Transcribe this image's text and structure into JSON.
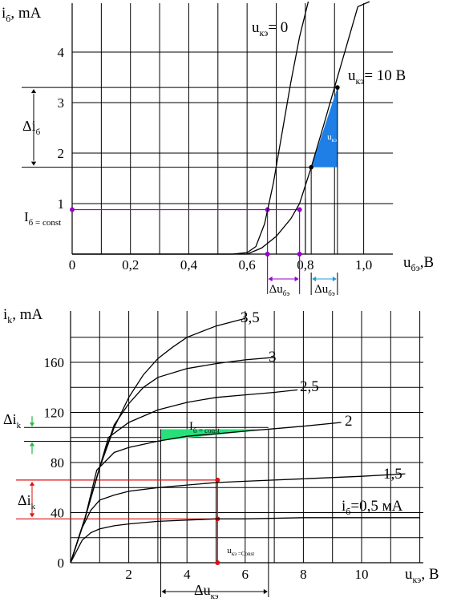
{
  "chart_data": [
    {
      "type": "line",
      "xlabel": "u",
      "xlabel_sub": "бэ",
      "xlabel_unit": ",В",
      "ylabel": "i",
      "ylabel_sub": "б",
      "ylabel_unit": ", mA",
      "xlim": [
        0,
        1.1
      ],
      "ylim": [
        0,
        5
      ],
      "x_ticks": [
        0,
        0.2,
        0.4,
        0.6,
        0.8,
        1.0
      ],
      "x_tick_labels": [
        "0",
        "0,2",
        "0,4",
        "0,6",
        "0,8",
        "1,0"
      ],
      "y_ticks": [
        1,
        2,
        3,
        4
      ],
      "y_tick_labels": [
        "1",
        "2",
        "3",
        "4"
      ],
      "grid": true,
      "series": [
        {
          "name": "uкэ= 0",
          "label_main": "u",
          "label_sub": "кэ",
          "label_rest": "= 0",
          "x": [
            0,
            0.55,
            0.6,
            0.63,
            0.66,
            0.69,
            0.72,
            0.75,
            0.78,
            0.81
          ],
          "y": [
            0,
            0,
            0.03,
            0.15,
            0.6,
            1.4,
            2.4,
            3.4,
            4.3,
            5.0
          ]
        },
        {
          "name": "uкэ= 10 В",
          "label_main": "u",
          "label_sub": "кэ",
          "label_rest": "= 10 В",
          "x": [
            0,
            0.6,
            0.65,
            0.7,
            0.75,
            0.78,
            0.82,
            0.86,
            0.9,
            0.94,
            0.98,
            1.02
          ],
          "y": [
            0,
            0,
            0.12,
            0.35,
            0.7,
            1.0,
            1.72,
            2.5,
            3.3,
            4.1,
            4.9,
            5.0
          ]
        }
      ],
      "annotations": {
        "ib_const_main": "I",
        "ib_const_sub": "б = const",
        "ib_const_value": 0.88,
        "ib_const_x": [
          0.67,
          0.78
        ],
        "delta_ib_main": "Δi",
        "delta_ib_sub": "б",
        "delta_ib_range": [
          1.72,
          3.3
        ],
        "delta_ube_main": "Δu",
        "delta_ube_sub": "бэ",
        "triangle_x": [
          0.82,
          0.91
        ],
        "triangle_y": [
          1.72,
          3.3
        ],
        "uke_const_main": "u",
        "uke_const_sub": "кэ =Const"
      },
      "colors": {
        "triangle": "#1f7fe6",
        "guide": "#9900cc",
        "bracket": "#1f9ed8"
      }
    },
    {
      "type": "line",
      "xlabel": "u",
      "xlabel_sub": "кэ",
      "xlabel_unit": ", В",
      "ylabel": "i",
      "ylabel_sub": "k",
      "ylabel_unit": ", mA",
      "xlim": [
        0,
        12
      ],
      "ylim": [
        0,
        200
      ],
      "x_ticks": [
        2,
        4,
        6,
        8,
        10
      ],
      "x_tick_labels": [
        "2",
        "4",
        "6",
        "8",
        "10"
      ],
      "y_ticks": [
        0,
        40,
        80,
        120,
        160
      ],
      "y_tick_labels": [
        "0",
        "40",
        "80",
        "120",
        "160"
      ],
      "grid": true,
      "series": [
        {
          "name": "3,5",
          "x": [
            0,
            0.5,
            1,
            1.5,
            2,
            2.5,
            3,
            3.5,
            4,
            5,
            6
          ],
          "y": [
            0,
            36,
            76,
            108,
            132,
            150,
            163,
            172,
            180,
            189,
            195
          ]
        },
        {
          "name": "3",
          "x": [
            0,
            0.5,
            1,
            1.5,
            2,
            2.5,
            3,
            4,
            5,
            6,
            7
          ],
          "y": [
            0,
            36,
            76,
            110,
            127,
            140,
            148,
            155,
            159,
            162,
            164
          ]
        },
        {
          "name": "2,5",
          "x": [
            0,
            0.5,
            1,
            1.3,
            2,
            3,
            4,
            5,
            6,
            7,
            7.8
          ],
          "y": [
            0,
            36,
            76,
            100,
            112,
            122,
            128,
            132,
            134,
            136,
            138
          ]
        },
        {
          "name": "2",
          "x": [
            0,
            0.5,
            0.9,
            1.5,
            2,
            3,
            4,
            5,
            6,
            7,
            8,
            9.3
          ],
          "y": [
            0,
            36,
            74,
            88,
            92,
            97,
            101,
            103,
            105,
            107,
            109,
            112
          ]
        },
        {
          "name": "1,5",
          "x": [
            0,
            0.4,
            0.7,
            1,
            1.5,
            2,
            3,
            4,
            5,
            6,
            8,
            10,
            11.5
          ],
          "y": [
            0,
            28,
            42,
            50,
            54,
            57,
            60,
            62,
            64,
            65,
            67,
            69,
            71
          ]
        },
        {
          "name": "i",
          "label_main": "i",
          "label_sub": "б",
          "label_rest": "=0,5 мА",
          "x": [
            0,
            0.4,
            0.7,
            1,
            1.5,
            2,
            3,
            4,
            5,
            6,
            8,
            10,
            12
          ],
          "y": [
            0,
            18,
            24,
            27,
            29.5,
            31,
            33,
            34,
            35,
            35,
            36,
            36,
            36
          ]
        }
      ],
      "annotations": {
        "delta_ik_main": "Δi",
        "delta_ik_sub": "k",
        "red_delta_range": [
          35,
          66
        ],
        "green_delta_range": [
          97,
          108
        ],
        "red_line_x": 5.05,
        "ib_const_main": "I",
        "ib_const_sub": "б = const",
        "shaded_x": [
          3.1,
          6.8
        ],
        "uke_const_main": "u",
        "uke_const_sub": "кэ =Const",
        "delta_uke_main": "Δu",
        "delta_uke_sub": "кэ",
        "delta_uke_range": [
          3.1,
          6.8
        ]
      },
      "colors": {
        "shade": "#26e07a",
        "red": "#e01010",
        "green_arrow": "#22bb44"
      }
    }
  ]
}
